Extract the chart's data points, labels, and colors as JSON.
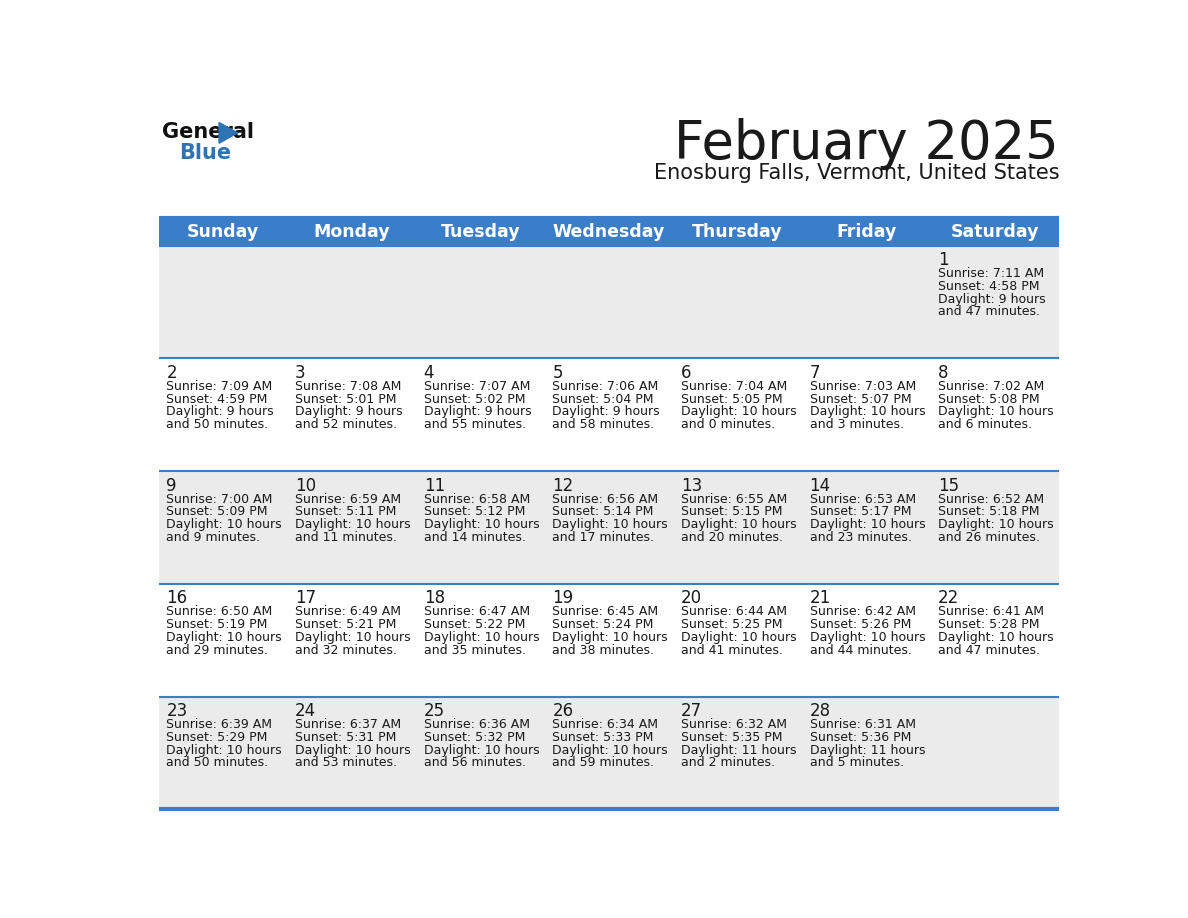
{
  "title": "February 2025",
  "subtitle": "Enosburg Falls, Vermont, United States",
  "header_bg": "#3A7DC9",
  "header_text_color": "#FFFFFF",
  "day_names": [
    "Sunday",
    "Monday",
    "Tuesday",
    "Wednesday",
    "Thursday",
    "Friday",
    "Saturday"
  ],
  "row_bg_odd": "#EBEBEB",
  "row_bg_even": "#FFFFFF",
  "separator_color": "#3A7DC9",
  "text_color": "#1A1A1A",
  "day_num_color": "#1A1A1A",
  "logo_color1": "#111111",
  "logo_color2": "#2E74B5",
  "calendar_data": [
    [
      null,
      null,
      null,
      null,
      null,
      null,
      {
        "day": 1,
        "sunrise": "7:11 AM",
        "sunset": "4:58 PM",
        "daylight": "9 hours and 47 minutes."
      }
    ],
    [
      {
        "day": 2,
        "sunrise": "7:09 AM",
        "sunset": "4:59 PM",
        "daylight": "9 hours and 50 minutes."
      },
      {
        "day": 3,
        "sunrise": "7:08 AM",
        "sunset": "5:01 PM",
        "daylight": "9 hours and 52 minutes."
      },
      {
        "day": 4,
        "sunrise": "7:07 AM",
        "sunset": "5:02 PM",
        "daylight": "9 hours and 55 minutes."
      },
      {
        "day": 5,
        "sunrise": "7:06 AM",
        "sunset": "5:04 PM",
        "daylight": "9 hours and 58 minutes."
      },
      {
        "day": 6,
        "sunrise": "7:04 AM",
        "sunset": "5:05 PM",
        "daylight": "10 hours and 0 minutes."
      },
      {
        "day": 7,
        "sunrise": "7:03 AM",
        "sunset": "5:07 PM",
        "daylight": "10 hours and 3 minutes."
      },
      {
        "day": 8,
        "sunrise": "7:02 AM",
        "sunset": "5:08 PM",
        "daylight": "10 hours and 6 minutes."
      }
    ],
    [
      {
        "day": 9,
        "sunrise": "7:00 AM",
        "sunset": "5:09 PM",
        "daylight": "10 hours and 9 minutes."
      },
      {
        "day": 10,
        "sunrise": "6:59 AM",
        "sunset": "5:11 PM",
        "daylight": "10 hours and 11 minutes."
      },
      {
        "day": 11,
        "sunrise": "6:58 AM",
        "sunset": "5:12 PM",
        "daylight": "10 hours and 14 minutes."
      },
      {
        "day": 12,
        "sunrise": "6:56 AM",
        "sunset": "5:14 PM",
        "daylight": "10 hours and 17 minutes."
      },
      {
        "day": 13,
        "sunrise": "6:55 AM",
        "sunset": "5:15 PM",
        "daylight": "10 hours and 20 minutes."
      },
      {
        "day": 14,
        "sunrise": "6:53 AM",
        "sunset": "5:17 PM",
        "daylight": "10 hours and 23 minutes."
      },
      {
        "day": 15,
        "sunrise": "6:52 AM",
        "sunset": "5:18 PM",
        "daylight": "10 hours and 26 minutes."
      }
    ],
    [
      {
        "day": 16,
        "sunrise": "6:50 AM",
        "sunset": "5:19 PM",
        "daylight": "10 hours and 29 minutes."
      },
      {
        "day": 17,
        "sunrise": "6:49 AM",
        "sunset": "5:21 PM",
        "daylight": "10 hours and 32 minutes."
      },
      {
        "day": 18,
        "sunrise": "6:47 AM",
        "sunset": "5:22 PM",
        "daylight": "10 hours and 35 minutes."
      },
      {
        "day": 19,
        "sunrise": "6:45 AM",
        "sunset": "5:24 PM",
        "daylight": "10 hours and 38 minutes."
      },
      {
        "day": 20,
        "sunrise": "6:44 AM",
        "sunset": "5:25 PM",
        "daylight": "10 hours and 41 minutes."
      },
      {
        "day": 21,
        "sunrise": "6:42 AM",
        "sunset": "5:26 PM",
        "daylight": "10 hours and 44 minutes."
      },
      {
        "day": 22,
        "sunrise": "6:41 AM",
        "sunset": "5:28 PM",
        "daylight": "10 hours and 47 minutes."
      }
    ],
    [
      {
        "day": 23,
        "sunrise": "6:39 AM",
        "sunset": "5:29 PM",
        "daylight": "10 hours and 50 minutes."
      },
      {
        "day": 24,
        "sunrise": "6:37 AM",
        "sunset": "5:31 PM",
        "daylight": "10 hours and 53 minutes."
      },
      {
        "day": 25,
        "sunrise": "6:36 AM",
        "sunset": "5:32 PM",
        "daylight": "10 hours and 56 minutes."
      },
      {
        "day": 26,
        "sunrise": "6:34 AM",
        "sunset": "5:33 PM",
        "daylight": "10 hours and 59 minutes."
      },
      {
        "day": 27,
        "sunrise": "6:32 AM",
        "sunset": "5:35 PM",
        "daylight": "11 hours and 2 minutes."
      },
      {
        "day": 28,
        "sunrise": "6:31 AM",
        "sunset": "5:36 PM",
        "daylight": "11 hours and 5 minutes."
      },
      null
    ]
  ]
}
